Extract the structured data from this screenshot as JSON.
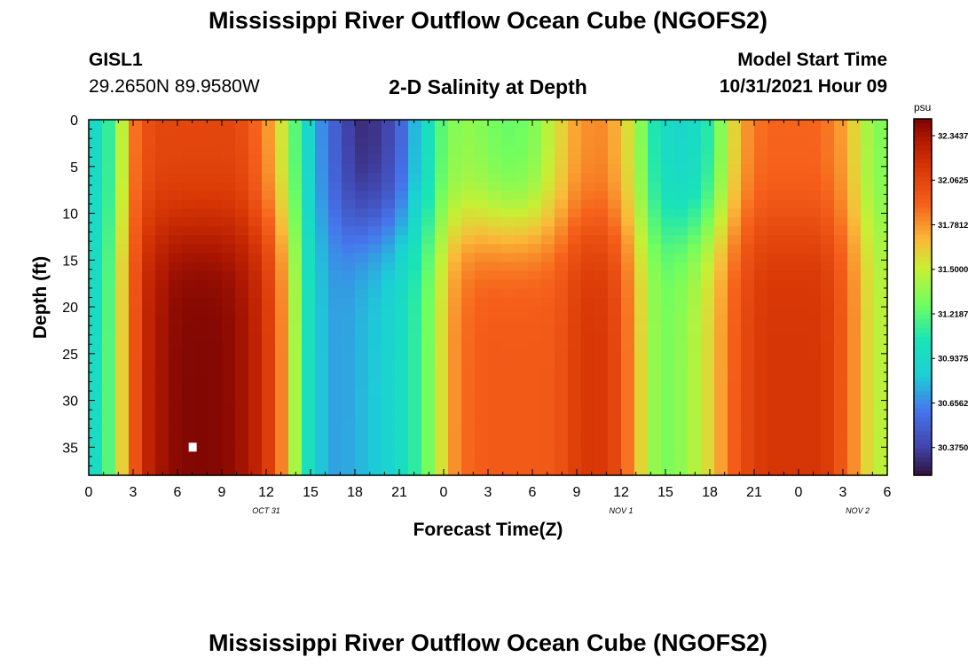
{
  "main_title": "Mississippi River Outflow Ocean Cube (NGOFS2)",
  "station": {
    "name": "GISL1",
    "coords": "29.2650N  89.9580W"
  },
  "subtitle": "2-D Salinity at Depth",
  "model_start": {
    "label": "Model Start Time",
    "value": "10/31/2021 Hour 09"
  },
  "second_title": "Mississippi River Outflow Ocean Cube (NGOFS2)",
  "chart_data": {
    "type": "heatmap",
    "title": "2-D Salinity at Depth",
    "xlabel": "Forecast Time(Z)",
    "ylabel": "Depth (ft)",
    "units": "psu",
    "x_tick_labels": [
      "0",
      "3",
      "6",
      "9",
      "12",
      "15",
      "18",
      "21",
      "0",
      "3",
      "6",
      "9",
      "12",
      "15",
      "18",
      "21",
      "0",
      "3",
      "6"
    ],
    "x_range_hours": [
      0,
      54
    ],
    "date_labels": [
      {
        "text": "OCT 31",
        "hour": 12
      },
      {
        "text": "NOV 1",
        "hour": 36
      },
      {
        "text": "NOV 2",
        "hour": 52
      }
    ],
    "y_tick_labels": [
      "0",
      "5",
      "10",
      "15",
      "20",
      "25",
      "30",
      "35"
    ],
    "y_range_ft": [
      0,
      38
    ],
    "color_min": 30.2,
    "color_max": 32.45,
    "colorbar_ticks": [
      "32.3437",
      "32.0625",
      "31.7812",
      "31.5000",
      "31.2187",
      "30.9375",
      "30.6562",
      "30.3750"
    ],
    "surface_salinity_profile": [
      {
        "hour": 0,
        "surface": 30.9,
        "bottom": 30.9
      },
      {
        "hour": 1,
        "surface": 31.0,
        "bottom": 31.05
      },
      {
        "hour": 2,
        "surface": 31.35,
        "bottom": 31.5
      },
      {
        "hour": 3,
        "surface": 31.85,
        "bottom": 31.95
      },
      {
        "hour": 4,
        "surface": 32.0,
        "bottom": 32.25
      },
      {
        "hour": 5,
        "surface": 32.05,
        "bottom": 32.35
      },
      {
        "hour": 6,
        "surface": 32.05,
        "bottom": 32.42
      },
      {
        "hour": 7,
        "surface": 32.05,
        "bottom": 32.43
      },
      {
        "hour": 8,
        "surface": 32.05,
        "bottom": 32.43
      },
      {
        "hour": 9,
        "surface": 32.05,
        "bottom": 32.42
      },
      {
        "hour": 10,
        "surface": 32.05,
        "bottom": 32.38
      },
      {
        "hour": 11,
        "surface": 31.95,
        "bottom": 32.3
      },
      {
        "hour": 12,
        "surface": 31.8,
        "bottom": 32.15
      },
      {
        "hour": 13,
        "surface": 31.55,
        "bottom": 31.85
      },
      {
        "hour": 14,
        "surface": 31.2,
        "bottom": 31.4
      },
      {
        "hour": 15,
        "surface": 30.85,
        "bottom": 30.95
      },
      {
        "hour": 16,
        "surface": 30.6,
        "bottom": 30.75
      },
      {
        "hour": 17,
        "surface": 30.45,
        "bottom": 30.7
      },
      {
        "hour": 18,
        "surface": 30.3,
        "bottom": 30.75
      },
      {
        "hour": 19,
        "surface": 30.3,
        "bottom": 30.8
      },
      {
        "hour": 20,
        "surface": 30.35,
        "bottom": 30.85
      },
      {
        "hour": 21,
        "surface": 30.5,
        "bottom": 30.95
      },
      {
        "hour": 22,
        "surface": 30.75,
        "bottom": 31.1
      },
      {
        "hour": 23,
        "surface": 31.0,
        "bottom": 31.3
      },
      {
        "hour": 24,
        "surface": 31.25,
        "bottom": 31.6
      },
      {
        "hour": 25,
        "surface": 31.35,
        "bottom": 31.85
      },
      {
        "hour": 26,
        "surface": 31.35,
        "bottom": 31.92
      },
      {
        "hour": 27,
        "surface": 31.3,
        "bottom": 31.95
      },
      {
        "hour": 28,
        "surface": 31.25,
        "bottom": 31.95
      },
      {
        "hour": 29,
        "surface": 31.25,
        "bottom": 31.95
      },
      {
        "hour": 30,
        "surface": 31.3,
        "bottom": 31.95
      },
      {
        "hour": 31,
        "surface": 31.45,
        "bottom": 31.95
      },
      {
        "hour": 32,
        "surface": 31.6,
        "bottom": 32.0
      },
      {
        "hour": 33,
        "surface": 31.75,
        "bottom": 32.1
      },
      {
        "hour": 34,
        "surface": 31.8,
        "bottom": 32.15
      },
      {
        "hour": 35,
        "surface": 31.8,
        "bottom": 32.12
      },
      {
        "hour": 36,
        "surface": 31.65,
        "bottom": 32.0
      },
      {
        "hour": 37,
        "surface": 31.45,
        "bottom": 31.7
      },
      {
        "hour": 38,
        "surface": 31.1,
        "bottom": 31.4
      },
      {
        "hour": 39,
        "surface": 30.95,
        "bottom": 31.3
      },
      {
        "hour": 40,
        "surface": 30.9,
        "bottom": 31.35
      },
      {
        "hour": 41,
        "surface": 30.95,
        "bottom": 31.45
      },
      {
        "hour": 42,
        "surface": 31.1,
        "bottom": 31.6
      },
      {
        "hour": 43,
        "surface": 31.4,
        "bottom": 31.8
      },
      {
        "hour": 44,
        "surface": 31.7,
        "bottom": 32.0
      },
      {
        "hour": 45,
        "surface": 31.85,
        "bottom": 32.1
      },
      {
        "hour": 46,
        "surface": 31.9,
        "bottom": 32.15
      },
      {
        "hour": 47,
        "surface": 31.9,
        "bottom": 32.15
      },
      {
        "hour": 48,
        "surface": 31.9,
        "bottom": 32.15
      },
      {
        "hour": 49,
        "surface": 31.9,
        "bottom": 32.15
      },
      {
        "hour": 50,
        "surface": 31.85,
        "bottom": 32.1
      },
      {
        "hour": 51,
        "surface": 31.75,
        "bottom": 31.95
      },
      {
        "hour": 52,
        "surface": 31.55,
        "bottom": 31.75
      },
      {
        "hour": 53,
        "surface": 31.35,
        "bottom": 31.5
      },
      {
        "hour": 54,
        "surface": 31.3,
        "bottom": 31.45
      }
    ]
  }
}
